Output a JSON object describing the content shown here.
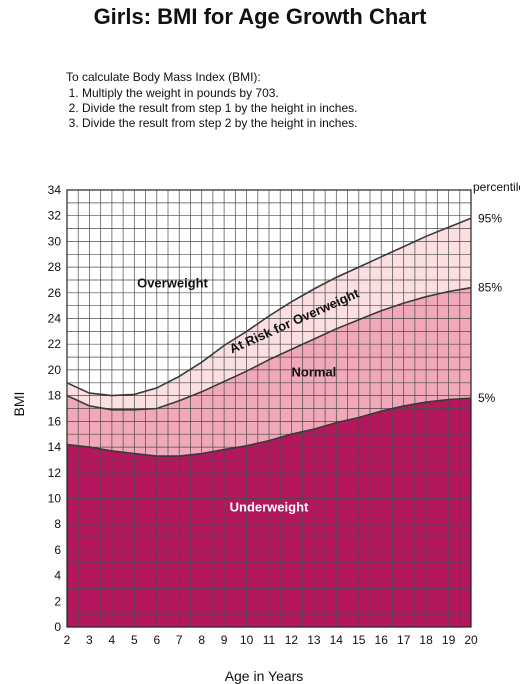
{
  "header": {
    "title": "Girls: BMI for Age Growth Chart"
  },
  "instructions": {
    "intro": "To calculate Body Mass Index (BMI):",
    "steps": [
      "Multiply the weight in pounds by 703.",
      "Divide the result from step 1 by the height in inches.",
      "Divide the result from step 2 by the height in inches."
    ]
  },
  "chart_data": {
    "type": "area",
    "xlabel": "Age in Years",
    "ylabel": "BMI",
    "xlim": [
      2,
      20
    ],
    "ylim": [
      0,
      34
    ],
    "x_ticks": [
      2,
      3,
      4,
      5,
      6,
      7,
      8,
      9,
      10,
      11,
      12,
      13,
      14,
      15,
      16,
      17,
      18,
      19,
      20
    ],
    "y_ticks": [
      0,
      2,
      4,
      6,
      8,
      10,
      12,
      14,
      16,
      18,
      20,
      22,
      24,
      26,
      28,
      30,
      32,
      34
    ],
    "grid": true,
    "x": [
      2,
      3,
      4,
      5,
      6,
      7,
      8,
      9,
      10,
      11,
      12,
      13,
      14,
      15,
      16,
      17,
      18,
      19,
      20
    ],
    "percentile_label": "percentile",
    "series": [
      {
        "name": "5%",
        "values": [
          14.2,
          14.0,
          13.7,
          13.5,
          13.3,
          13.3,
          13.5,
          13.8,
          14.1,
          14.5,
          15.0,
          15.4,
          15.9,
          16.3,
          16.8,
          17.2,
          17.5,
          17.7,
          17.8
        ]
      },
      {
        "name": "85%",
        "values": [
          18.0,
          17.2,
          16.9,
          16.9,
          17.0,
          17.6,
          18.3,
          19.1,
          19.9,
          20.8,
          21.6,
          22.4,
          23.2,
          23.9,
          24.6,
          25.2,
          25.7,
          26.1,
          26.4
        ]
      },
      {
        "name": "95%",
        "values": [
          19.0,
          18.2,
          18.0,
          18.1,
          18.6,
          19.5,
          20.6,
          21.9,
          23.0,
          24.2,
          25.3,
          26.3,
          27.2,
          28.0,
          28.8,
          29.6,
          30.4,
          31.1,
          31.8
        ]
      }
    ],
    "zones": [
      {
        "name": "Underweight",
        "color": "#b5175e",
        "text_color": "#ffffff",
        "x": 11,
        "y": 9
      },
      {
        "name": "Normal",
        "color": "#f1a9ba",
        "text_color": "#111111",
        "x": 13,
        "y": 19.5
      },
      {
        "name": "At Risk for Overweight",
        "color": "#fbdfe1",
        "text_color": "#111111",
        "x": 12.2,
        "y": 23.5,
        "angle": -24
      },
      {
        "name": "Overweight",
        "color": "#ffffff",
        "text_color": "#111111",
        "x": 6.7,
        "y": 26.4
      }
    ],
    "colors": {
      "grid": "#4a4a4a",
      "curve": "#3a3a3a"
    }
  }
}
